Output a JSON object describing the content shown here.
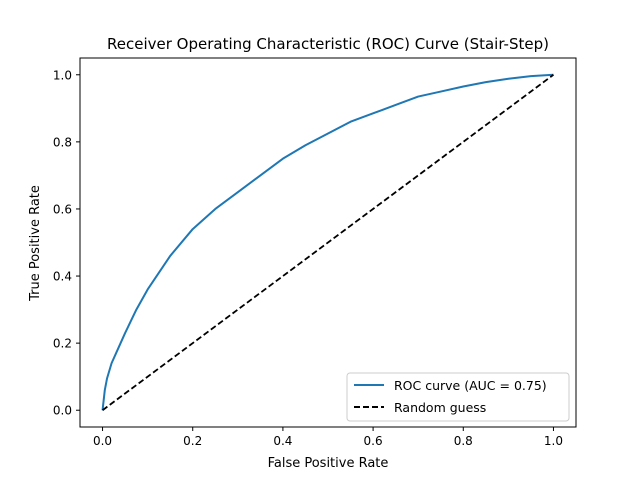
{
  "chart_data": {
    "type": "line",
    "title": "Receiver Operating Characteristic (ROC) Curve (Stair-Step)",
    "xlabel": "False Positive Rate",
    "ylabel": "True Positive Rate",
    "xlim": [
      -0.05,
      1.05
    ],
    "ylim": [
      -0.05,
      1.05
    ],
    "xticks": [
      0.0,
      0.2,
      0.4,
      0.6,
      0.8,
      1.0
    ],
    "yticks": [
      0.0,
      0.2,
      0.4,
      0.6,
      0.8,
      1.0
    ],
    "xtick_labels": [
      "0.0",
      "0.2",
      "0.4",
      "0.6",
      "0.8",
      "1.0"
    ],
    "ytick_labels": [
      "0.0",
      "0.2",
      "0.4",
      "0.6",
      "0.8",
      "1.0"
    ],
    "grid": false,
    "legend_position": "lower-right",
    "series": [
      {
        "name": "ROC curve (AUC = 0.75)",
        "color": "#1f77b4",
        "style": "solid",
        "x": [
          0.0,
          0.005,
          0.01,
          0.02,
          0.03,
          0.05,
          0.075,
          0.1,
          0.15,
          0.2,
          0.25,
          0.3,
          0.35,
          0.4,
          0.45,
          0.5,
          0.55,
          0.6,
          0.65,
          0.7,
          0.75,
          0.8,
          0.85,
          0.9,
          0.95,
          1.0
        ],
        "y": [
          0.0,
          0.06,
          0.095,
          0.14,
          0.17,
          0.23,
          0.3,
          0.36,
          0.46,
          0.54,
          0.6,
          0.65,
          0.7,
          0.75,
          0.79,
          0.825,
          0.86,
          0.885,
          0.91,
          0.935,
          0.95,
          0.965,
          0.978,
          0.988,
          0.996,
          1.0
        ]
      },
      {
        "name": "Random guess",
        "color": "#000000",
        "style": "dashed",
        "x": [
          0.0,
          1.0
        ],
        "y": [
          0.0,
          1.0
        ]
      }
    ]
  }
}
